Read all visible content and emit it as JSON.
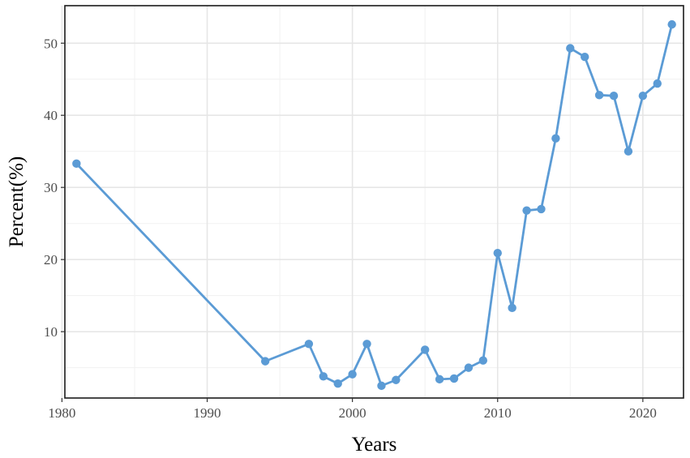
{
  "chart_data": {
    "type": "line",
    "title": "",
    "xlabel": "Years",
    "ylabel": "Percent(%)",
    "xlim": [
      1980.2,
      2022.8
    ],
    "ylim": [
      0.8,
      55.2
    ],
    "xticks": [
      1980,
      1990,
      2000,
      2010,
      2020
    ],
    "yticks": [
      10,
      20,
      30,
      40,
      50
    ],
    "xminor": [
      1985,
      1995,
      2005,
      2015
    ],
    "yminor": [
      5,
      15,
      25,
      35,
      45
    ],
    "grid": true,
    "legend": "none",
    "series_color": "#5b9bd5",
    "series": [
      {
        "x": [
          1981,
          1994,
          1997,
          1998,
          1999,
          2000,
          2001,
          2002,
          2003,
          2005,
          2006,
          2007,
          2008,
          2009,
          2010,
          2011,
          2012,
          2013,
          2014,
          2015,
          2016,
          2017,
          2018,
          2019,
          2020,
          2021,
          2022
        ],
        "values": [
          33.3,
          5.9,
          8.3,
          3.8,
          2.8,
          4.1,
          8.3,
          2.5,
          3.3,
          7.5,
          3.4,
          3.5,
          5.0,
          6.0,
          20.9,
          13.3,
          26.8,
          27.0,
          36.8,
          49.3,
          48.1,
          42.8,
          42.7,
          35.0,
          42.7,
          44.4,
          52.6
        ]
      }
    ]
  }
}
